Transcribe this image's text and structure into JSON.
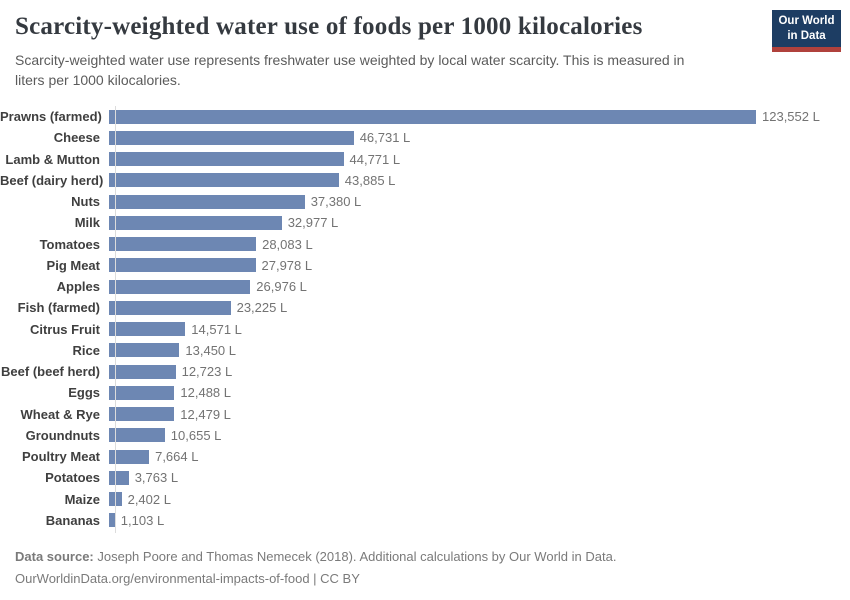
{
  "header": {
    "title": "Scarcity-weighted water use of foods per 1000 kilocalories",
    "subtitle": "Scarcity-weighted water use represents freshwater use weighted by local water scarcity. This is measured in liters per 1000 kilocalories.",
    "logo": {
      "line1": "Our World",
      "line2": "in Data"
    }
  },
  "chart_data": {
    "type": "bar",
    "orientation": "horizontal",
    "title": "Scarcity-weighted water use of foods per 1000 kilocalories",
    "xlabel": "",
    "ylabel": "",
    "xlim": [
      0,
      123552
    ],
    "grid": false,
    "legend": false,
    "value_label_position": "end-of-bar",
    "unit_suffix": " L",
    "categories": [
      "Prawns (farmed)",
      "Cheese",
      "Lamb & Mutton",
      "Beef (dairy herd)",
      "Nuts",
      "Milk",
      "Tomatoes",
      "Pig Meat",
      "Apples",
      "Fish (farmed)",
      "Citrus Fruit",
      "Rice",
      "Beef (beef herd)",
      "Eggs",
      "Wheat & Rye",
      "Groundnuts",
      "Poultry Meat",
      "Potatoes",
      "Maize",
      "Bananas"
    ],
    "values": [
      123552,
      46731,
      44771,
      43885,
      37380,
      32977,
      28083,
      27978,
      26976,
      23225,
      14571,
      13450,
      12723,
      12488,
      12479,
      10655,
      7664,
      3763,
      2402,
      1103
    ]
  },
  "colors": {
    "bar": "#6d87b3",
    "logo_background": "#1d3d63",
    "logo_stripe": "#b0413c"
  },
  "footer": {
    "source_label": "Data source:",
    "source_text": " Joseph Poore and Thomas Nemecek (2018). Additional calculations by Our World in Data.",
    "license_line": "OurWorldinData.org/environmental-impacts-of-food | CC BY"
  }
}
